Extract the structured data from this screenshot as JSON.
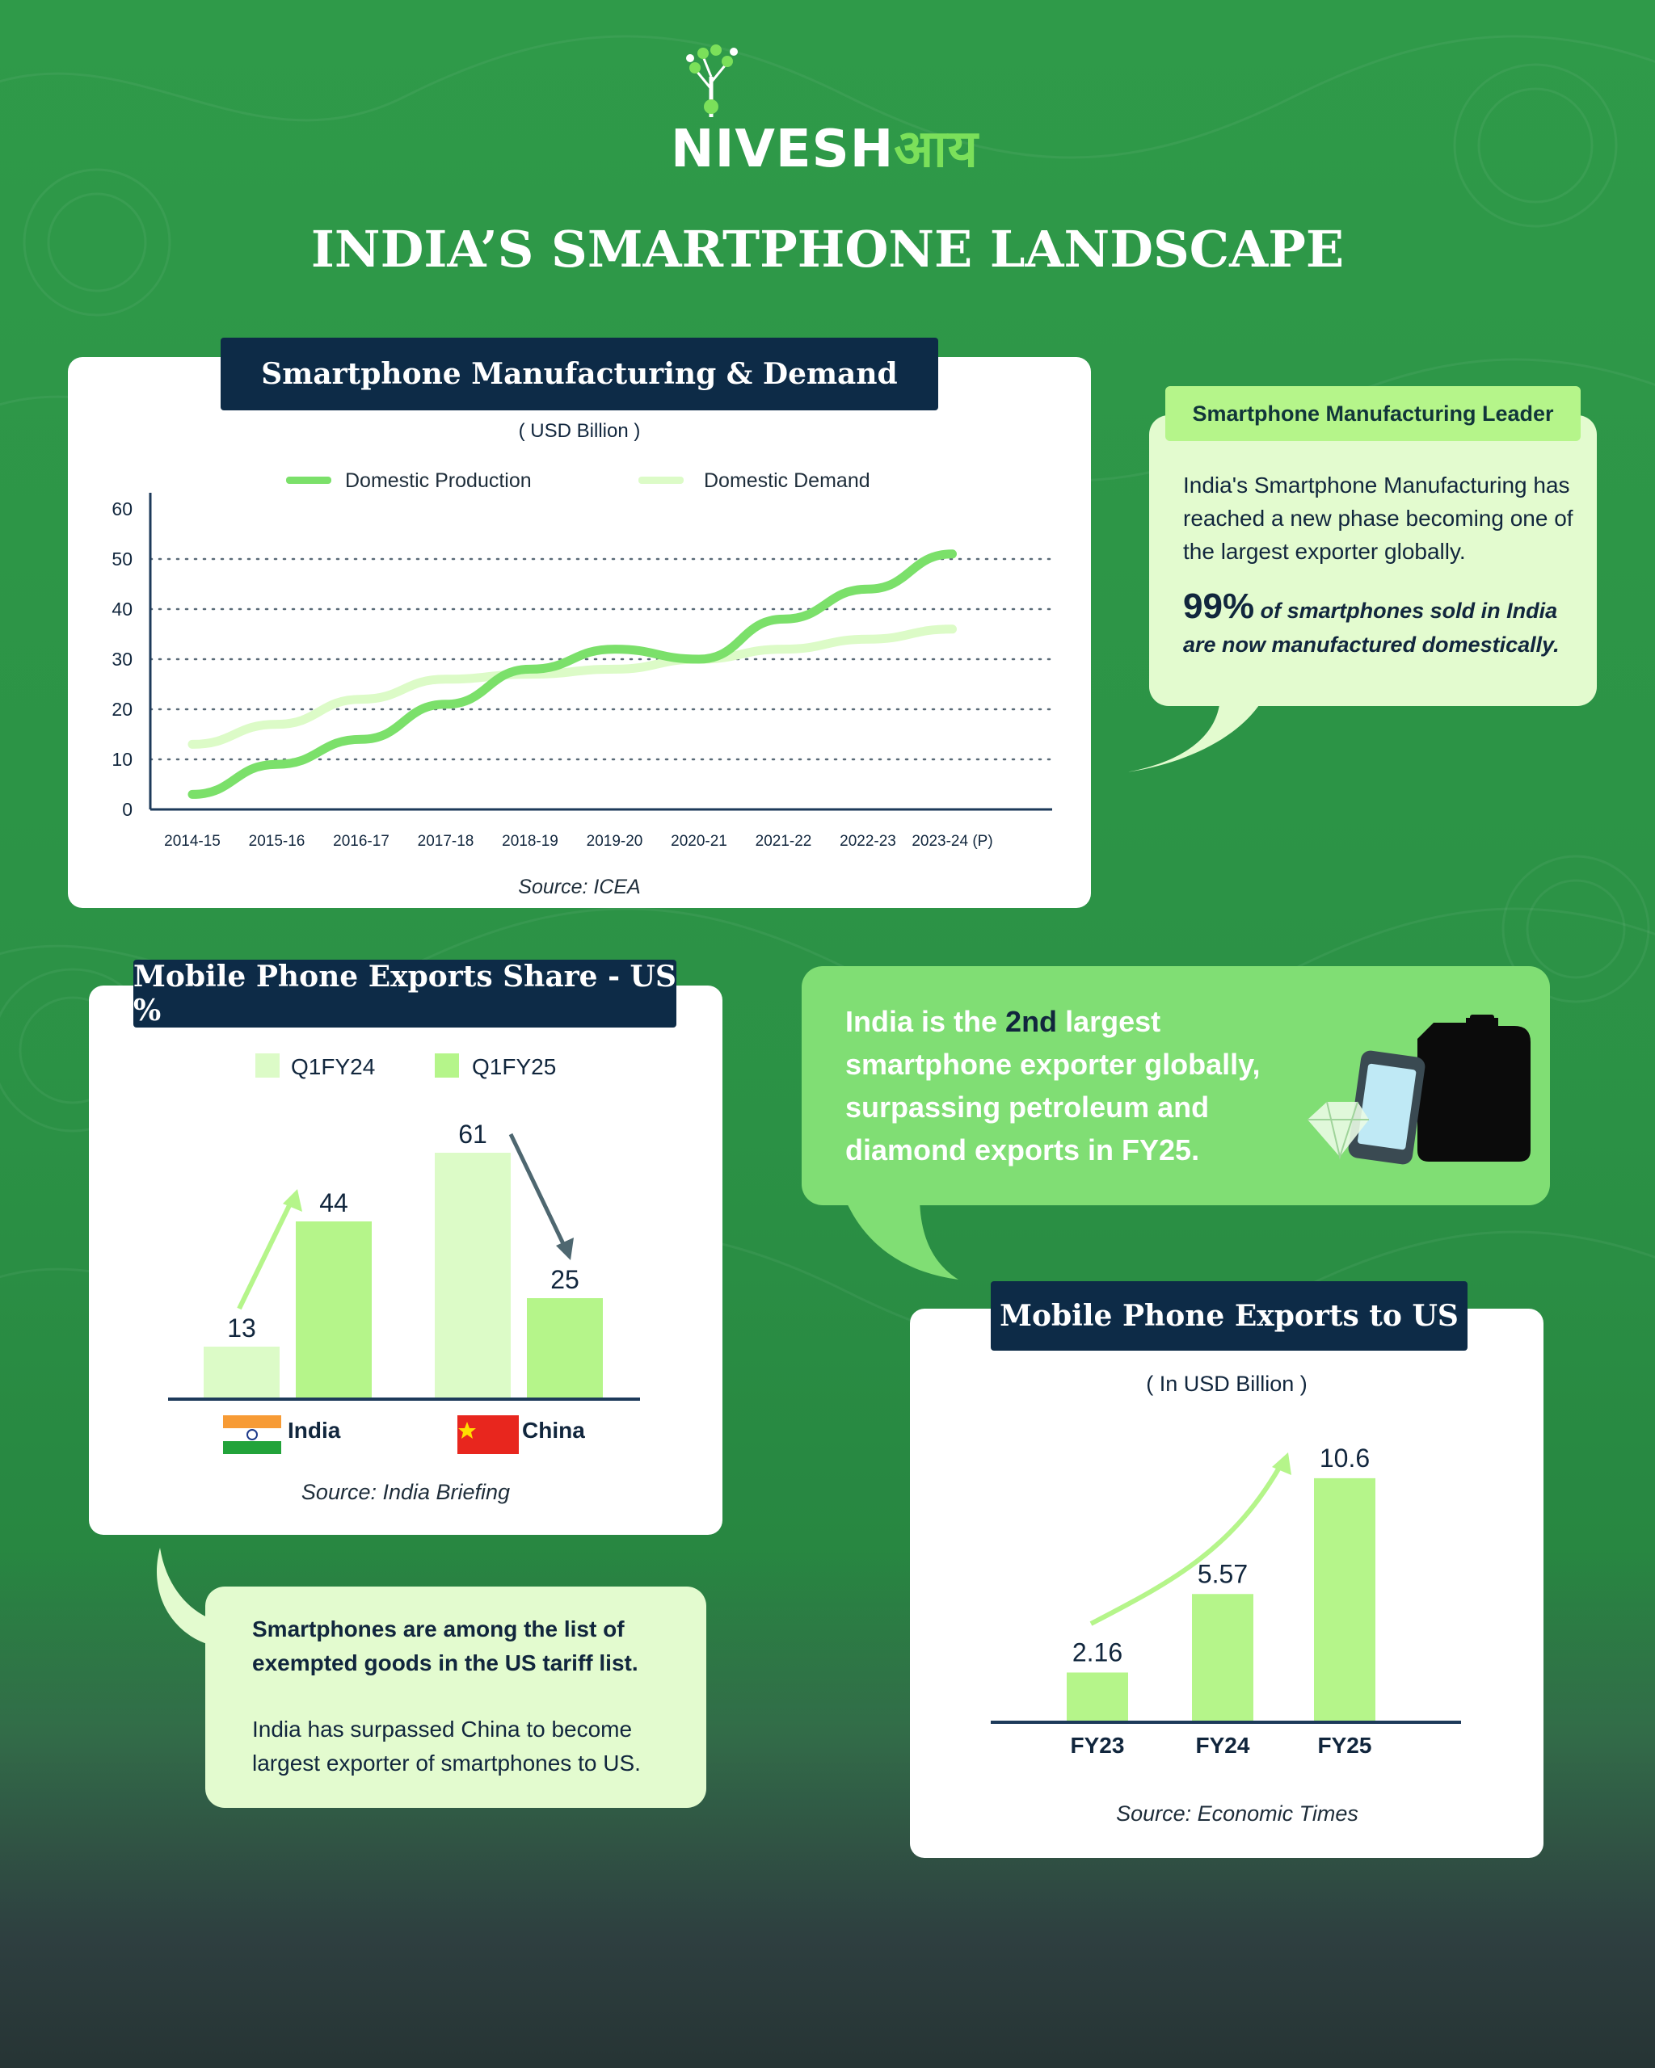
{
  "logo": {
    "text_en": "NIVESH",
    "text_hi": "आय"
  },
  "title": "INDIA’S SMARTPHONE LANDSCAPE",
  "colors": {
    "background": "#2f9a49",
    "navy": "#0d2b47",
    "production": "#7be06a",
    "demand": "#dcfbc7",
    "q1fy24": "#dcfbc7",
    "q1fy25": "#b5f58a",
    "bubble_light": "#e3fbcf",
    "bubble_green": "#80de74"
  },
  "charts": [
    {
      "id": "manufacturing",
      "type": "line",
      "title": "Smartphone Manufacturing & Demand",
      "subtitle": "( USD Billion )",
      "x": [
        "2014-15",
        "2015-16",
        "2016-17",
        "2017-18",
        "2018-19",
        "2019-20",
        "2020-21",
        "2021-22",
        "2022-23",
        "2023-24 (P)"
      ],
      "series": [
        {
          "name": "Domestic Production",
          "values": [
            3,
            9,
            14,
            21,
            28,
            32,
            30,
            38,
            44,
            51
          ]
        },
        {
          "name": "Domestic Demand",
          "values": [
            13,
            17,
            22,
            26,
            27,
            28,
            30,
            32,
            34,
            36
          ]
        }
      ],
      "yticks": [
        "0",
        "10",
        "20",
        "30",
        "40",
        "50",
        "60"
      ],
      "ylim": [
        0,
        60
      ],
      "grid": "dotted",
      "legend": "top",
      "source": "Source: ICEA"
    },
    {
      "id": "exports_share",
      "type": "bar",
      "title": "Mobile Phone Exports Share - US %",
      "categories": [
        "India",
        "China"
      ],
      "series": [
        {
          "name": "Q1FY24",
          "values": [
            13,
            61
          ]
        },
        {
          "name": "Q1FY25",
          "values": [
            44,
            25
          ]
        }
      ],
      "legend": "top",
      "source": "Source: India Briefing"
    },
    {
      "id": "exports_us",
      "type": "bar",
      "title": "Mobile Phone Exports to US",
      "subtitle": "( In USD Billion )",
      "categories": [
        "FY23",
        "FY24",
        "FY25"
      ],
      "values": [
        2.16,
        5.57,
        10.6
      ],
      "value_labels": [
        "2.16",
        "5.57",
        "10.6"
      ],
      "source": "Source: Economic Times"
    }
  ],
  "leader_box": {
    "label": "Smartphone Manufacturing Leader",
    "text": "India's Smartphone Manufacturing has reached a new phase becoming one of the largest exporter globally.",
    "stat": "99%",
    "stat_text": "of smartphones sold in India are now manufactured domestically."
  },
  "exporter_box": {
    "line1_pre": "India is the ",
    "line1_bold": "2nd",
    "line1_post": " largest",
    "line2": "smartphone exporter globally,",
    "line3": "surpassing petroleum and",
    "line4": "diamond exports in FY25."
  },
  "tariff_box": {
    "bold_text": "Smartphones are among the list of exempted goods in the US tariff list.",
    "text": "India has surpassed China to become largest exporter of smartphones to US."
  },
  "icons": [
    "logo-tree-icon",
    "india-flag-icon",
    "china-flag-icon",
    "smartphone-icon",
    "diamond-icon",
    "fuel-can-icon"
  ]
}
